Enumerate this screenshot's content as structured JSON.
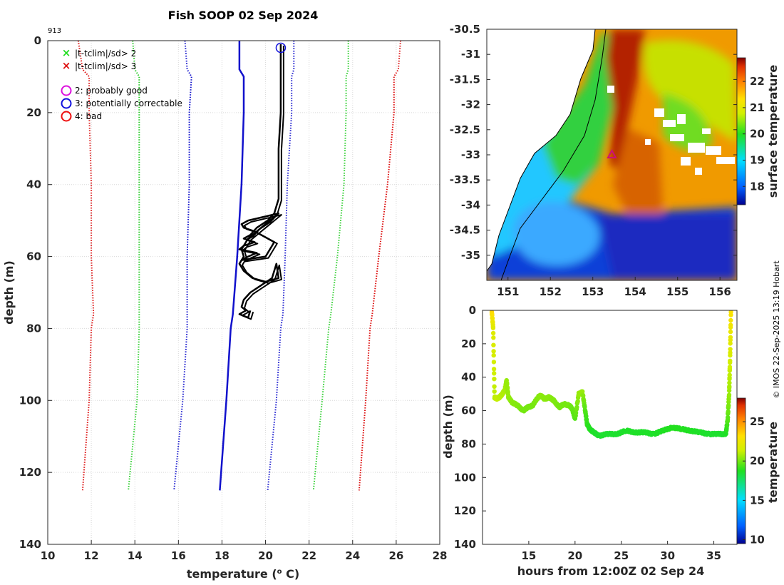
{
  "chart_data": [
    {
      "type": "line",
      "title": "Fish SOOP 02 Sep 2024",
      "profile_id": "913",
      "xlabel": "temperature (",
      "xlabel_sup": "o",
      "xlabel_end": " C)",
      "ylabel": "depth (m)",
      "xlim": [
        10,
        28
      ],
      "ylim": [
        0,
        140
      ],
      "xticks": [
        10,
        12,
        14,
        16,
        18,
        20,
        22,
        24,
        26,
        28
      ],
      "yticks": [
        0,
        20,
        40,
        60,
        80,
        100,
        120,
        140
      ],
      "yreversed": true,
      "legend": [
        {
          "marker": "x",
          "color": "#22dd22",
          "label": "|t-tclim|/sd> 2"
        },
        {
          "marker": "x",
          "color": "#dd1111",
          "label": "|t-tclim|/sd> 3"
        },
        {
          "marker": "o",
          "color": "#dd11dd",
          "label": "2: probably good"
        },
        {
          "marker": "o",
          "color": "#1111dd",
          "label": "3: potentially correctable"
        },
        {
          "marker": "o",
          "color": "#ee1111",
          "label": "4: bad"
        }
      ],
      "climatology": {
        "depths": [
          0,
          8,
          10,
          20,
          40,
          60,
          76,
          80,
          100,
          125
        ],
        "mean": [
          18.8,
          18.8,
          19.0,
          19.0,
          18.9,
          18.7,
          18.5,
          18.4,
          18.2,
          17.9
        ],
        "lines": [
          {
            "name": "-3sd",
            "color": "#dd1111",
            "values": [
              11.4,
              11.6,
              11.9,
              11.9,
              12.0,
              12.0,
              12.1,
              12.0,
              11.9,
              11.6
            ]
          },
          {
            "name": "-2sd",
            "color": "#22cc22",
            "values": [
              13.9,
              14.0,
              14.2,
              14.2,
              14.2,
              14.2,
              14.2,
              14.2,
              14.1,
              13.7
            ]
          },
          {
            "name": "-1sd",
            "color": "#1111cc",
            "values": [
              16.3,
              16.4,
              16.6,
              16.5,
              16.5,
              16.4,
              16.4,
              16.4,
              16.2,
              15.8
            ]
          },
          {
            "name": "+1sd",
            "color": "#1111cc",
            "values": [
              21.3,
              21.3,
              21.2,
              21.2,
              21.0,
              20.9,
              20.8,
              20.7,
              20.5,
              20.1
            ]
          },
          {
            "name": "+2sd",
            "color": "#22cc22",
            "values": [
              23.8,
              23.8,
              23.7,
              23.7,
              23.6,
              23.3,
              23.0,
              22.9,
              22.6,
              22.2
            ]
          },
          {
            "name": "+3sd",
            "color": "#dd1111",
            "values": [
              26.2,
              26.1,
              25.9,
              25.9,
              25.6,
              25.2,
              24.9,
              24.8,
              24.6,
              24.3
            ]
          }
        ]
      },
      "profile": {
        "name": "fish profile",
        "color": "#000000",
        "temps": [
          20.7,
          20.7,
          20.7,
          20.6,
          20.6,
          20.6,
          20.5,
          20.4,
          20.1,
          19.6,
          19.3,
          19.0,
          19.5,
          19.0,
          18.8,
          19.6,
          19.2,
          18.9,
          20.0,
          20.4,
          19.5,
          19.0,
          18.9,
          19.2,
          20.6,
          20.2,
          19.8,
          19.2,
          18.9,
          19.0,
          18.8,
          19.0,
          19.4,
          20.0,
          20.6,
          20.5,
          20.3,
          19.8,
          19.3,
          19.0,
          18.9,
          19.1,
          18.8,
          19.2,
          19.3
        ],
        "depths": [
          1,
          10,
          20,
          30,
          40,
          44,
          46,
          48,
          50,
          52,
          54,
          55,
          56,
          57,
          58,
          59,
          60,
          61,
          60,
          56,
          53,
          52,
          51,
          50,
          48,
          50,
          52,
          55,
          58,
          60,
          62,
          64,
          66,
          67,
          66,
          62,
          66,
          68,
          70,
          72,
          74,
          75,
          76,
          77,
          75
        ]
      },
      "flag_marker": {
        "temp": 20.7,
        "depth": 1,
        "color": "#1111dd"
      }
    },
    {
      "type": "heatmap",
      "colorbar_label": "surface temperature",
      "colorbar_range": [
        17.3,
        22.9
      ],
      "colorbar_ticks": [
        18,
        19,
        20,
        21,
        22
      ],
      "xlim": [
        150.5,
        156.4
      ],
      "ylim": [
        -35.5,
        -30.5
      ],
      "xticks": [
        151,
        152,
        153,
        154,
        155,
        156
      ],
      "yticks": [
        -30.5,
        -31,
        -31.5,
        -32,
        -32.5,
        -33,
        -33.5,
        -34,
        -34.5,
        -35
      ],
      "station": {
        "lon": 153.45,
        "lat": -33.0
      }
    },
    {
      "type": "scatter",
      "xlabel": "hours from 12:00Z 02 Sep 24",
      "ylabel": "depth (m)",
      "colorbar_label": "temperature",
      "colorbar_range": [
        9.5,
        28
      ],
      "colorbar_ticks": [
        10,
        15,
        20,
        25
      ],
      "xlim": [
        10,
        37.5
      ],
      "ylim": [
        0,
        140
      ],
      "xticks": [
        15,
        20,
        25,
        30,
        35
      ],
      "yticks": [
        0,
        20,
        40,
        60,
        80,
        100,
        120,
        140
      ],
      "yreversed": true,
      "track": {
        "hours": [
          11.0,
          11.15,
          11.3,
          11.6,
          12.0,
          12.4,
          12.6,
          12.8,
          13.2,
          13.8,
          14.4,
          14.9,
          15.4,
          16.0,
          16.3,
          16.7,
          17.2,
          17.7,
          18.3,
          18.8,
          19.4,
          19.7,
          20.0,
          20.4,
          20.8,
          21.1,
          21.3,
          21.6,
          22.0,
          22.6,
          23.5,
          24.5,
          25.5,
          26.5,
          27.5,
          28.5,
          29.5,
          30.5,
          31.5,
          32.5,
          33.5,
          34.5,
          35.5,
          36.3,
          36.5,
          36.65,
          36.75,
          36.85
        ],
        "depths": [
          1,
          10,
          52,
          53,
          51,
          48,
          42,
          52,
          55,
          57,
          60,
          58,
          57,
          52,
          51,
          53,
          52,
          54,
          58,
          56,
          57,
          59,
          65,
          50,
          49,
          60,
          68,
          71,
          73,
          75,
          74,
          74,
          72,
          73,
          73,
          74,
          72,
          70,
          71,
          72,
          73,
          74,
          74,
          74,
          65,
          50,
          30,
          1
        ],
        "temps": [
          23.5,
          22.0,
          21.0,
          21.2,
          21.0,
          20.8,
          20.5,
          20.5,
          20.3,
          20.2,
          20.0,
          20.0,
          20.0,
          20.2,
          20.3,
          20.3,
          20.3,
          20.2,
          20.0,
          20.0,
          20.0,
          19.8,
          19.5,
          20.5,
          20.5,
          19.5,
          19.0,
          18.8,
          18.6,
          18.5,
          18.5,
          18.5,
          18.6,
          18.6,
          18.6,
          18.6,
          18.7,
          18.8,
          18.8,
          18.7,
          18.6,
          18.5,
          18.5,
          18.6,
          19.5,
          20.5,
          21.5,
          23.0
        ]
      }
    }
  ],
  "timestamp": "© IMOS 22-Sep-2025 13:19 Hobart"
}
